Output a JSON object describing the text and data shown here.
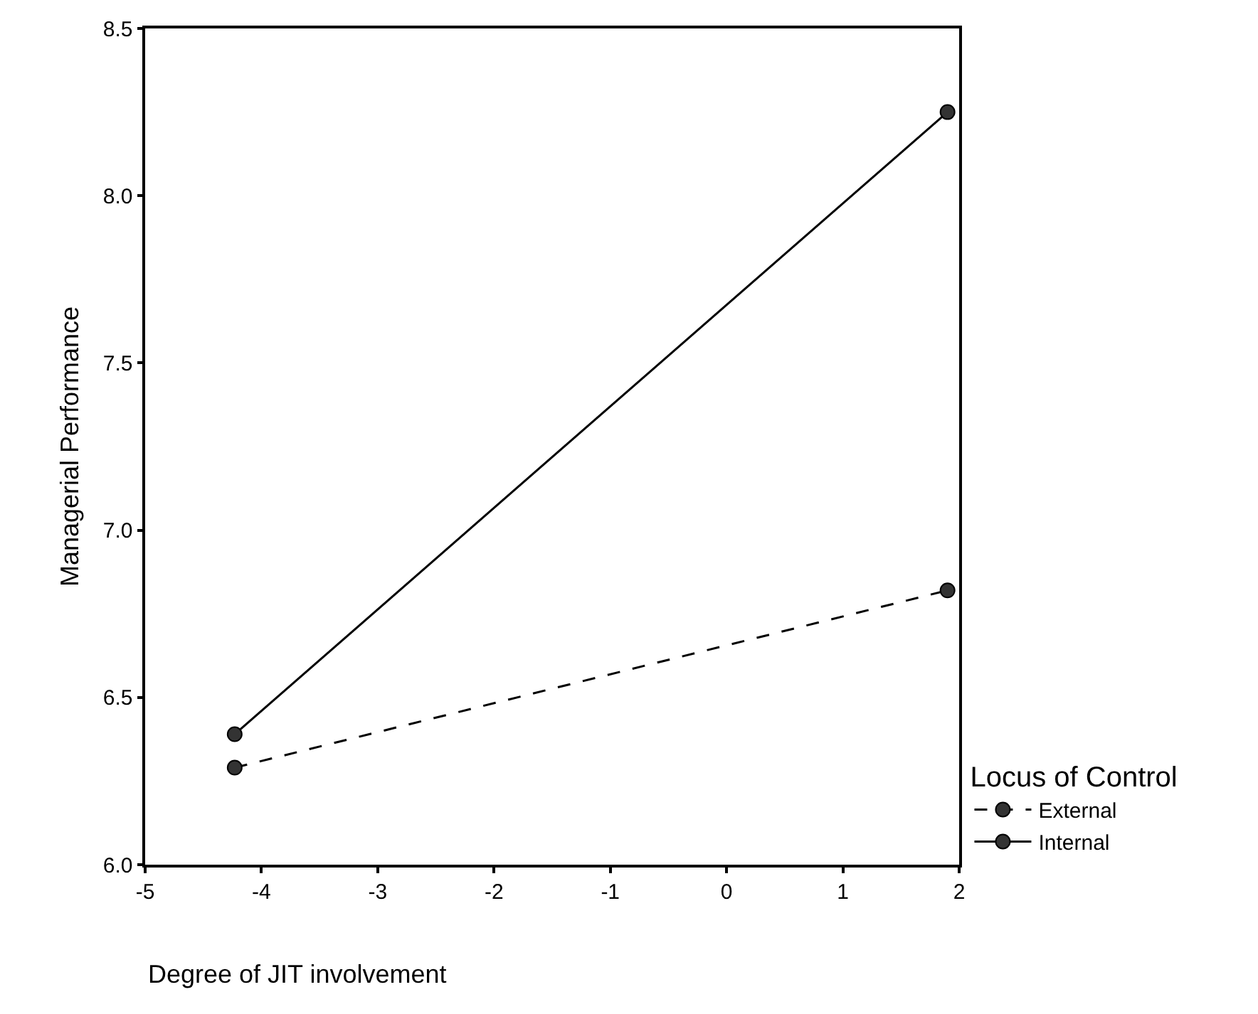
{
  "chart_data": {
    "type": "line",
    "xlabel": "Degree of JIT involvement",
    "ylabel": "Managerial Performance",
    "legend_title": "Locus of Control",
    "x": [
      -4.23,
      1.9
    ],
    "series": [
      {
        "name": "External",
        "color": "#000000",
        "values": [
          6.29,
          6.82
        ],
        "line_style": "dashed"
      },
      {
        "name": "Internal",
        "color": "#000000",
        "values": [
          6.39,
          8.25
        ],
        "line_style": "solid"
      }
    ],
    "xlim": [
      -5,
      2
    ],
    "xticks": [
      -5,
      -4,
      -3,
      -2,
      -1,
      0,
      1,
      2
    ],
    "ylim": [
      6.0,
      8.5
    ],
    "yticks": [
      {
        "value": 6.0,
        "label": "6.0"
      },
      {
        "value": 6.5,
        "label": "6.5"
      },
      {
        "value": 7.0,
        "label": "7.0"
      },
      {
        "value": 7.5,
        "label": "7.5"
      },
      {
        "value": 8.0,
        "label": "8.0"
      },
      {
        "value": 8.5,
        "label": "8.5"
      }
    ],
    "marker": "circle",
    "legend": "right"
  }
}
